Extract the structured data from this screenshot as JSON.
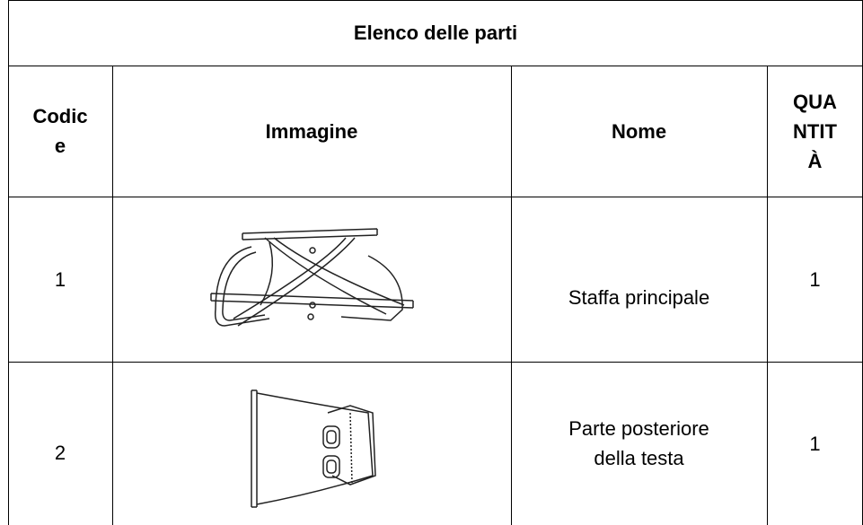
{
  "table": {
    "title": "Elenco delle parti",
    "header": [
      "Codice",
      "Immagine",
      "Nome",
      "QUANTITÀ"
    ],
    "rows": [
      [
        "1",
        "Staffa principale",
        "1"
      ],
      [
        "2",
        "Parte posteriore della testa",
        "1"
      ]
    ]
  }
}
